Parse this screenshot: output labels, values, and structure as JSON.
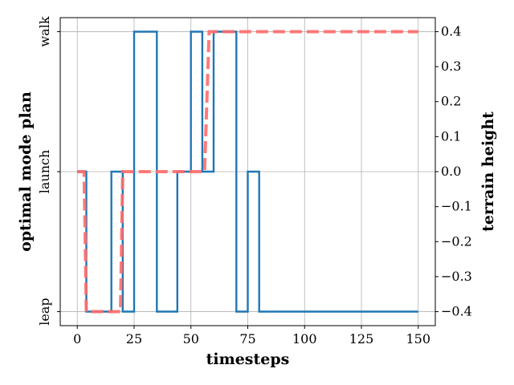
{
  "chart_data": {
    "type": "line",
    "xlabel": "timesteps",
    "ylabel_left": "optimal mode plan",
    "ylabel_right": "terrain height",
    "x_ticks": [
      "0",
      "25",
      "50",
      "75",
      "100",
      "125",
      "150"
    ],
    "x_tick_values": [
      0,
      25,
      50,
      75,
      100,
      125,
      150
    ],
    "left_categories": [
      "leap",
      "launch",
      "walk"
    ],
    "right_ticks": [
      "−0.4",
      "−0.3",
      "−0.2",
      "−0.1",
      "0.0",
      "0.1",
      "0.2",
      "0.3",
      "0.4"
    ],
    "right_tick_values": [
      -0.4,
      -0.3,
      -0.2,
      -0.1,
      0.0,
      0.1,
      0.2,
      0.3,
      0.4
    ],
    "xlim": [
      -7.5,
      157.5
    ],
    "right_ylim": [
      -0.44,
      0.44
    ],
    "grid": true,
    "series": [
      {
        "role": "mode plan",
        "axis": "left",
        "style": "solid",
        "color": "#1f77b4",
        "x": [
          0,
          4,
          4,
          15,
          15,
          20,
          20,
          25,
          25,
          35,
          35,
          44,
          44,
          50,
          50,
          55,
          55,
          60,
          60,
          70,
          70,
          75,
          75,
          80,
          80,
          150
        ],
        "y": [
          "launch",
          "launch",
          "leap",
          "leap",
          "launch",
          "launch",
          "leap",
          "leap",
          "walk",
          "walk",
          "leap",
          "leap",
          "launch",
          "launch",
          "walk",
          "walk",
          "launch",
          "launch",
          "walk",
          "walk",
          "leap",
          "leap",
          "launch",
          "launch",
          "leap",
          "leap"
        ]
      },
      {
        "role": "terrain height",
        "axis": "right",
        "style": "dashed",
        "color": "#ff6b6b",
        "x": [
          0,
          3,
          4,
          19,
          20,
          56,
          58,
          150
        ],
        "y": [
          0.0,
          0.0,
          -0.4,
          -0.4,
          0.0,
          0.0,
          0.4,
          0.4
        ]
      }
    ]
  }
}
